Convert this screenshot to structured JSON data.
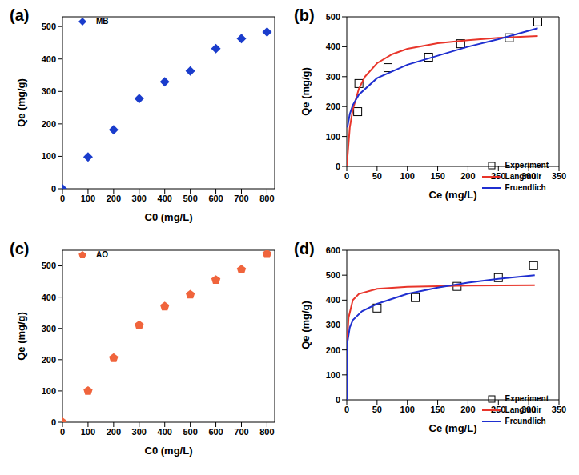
{
  "chart_data": [
    {
      "type": "scatter",
      "title": "(a)",
      "x_label": "C0 (mg/L)",
      "y_label": "Qe (mg/g)",
      "x": [
        0,
        100,
        200,
        300,
        400,
        500,
        600,
        700,
        800
      ],
      "series": [
        {
          "name": "MB",
          "type": "scatter",
          "color": "#1a3ccc",
          "marker": "diamond",
          "values": [
            0,
            98,
            182,
            278,
            330,
            363,
            432,
            463,
            483
          ]
        }
      ],
      "xlim": [
        0,
        830
      ],
      "xticks": [
        0,
        100,
        200,
        300,
        400,
        500,
        600,
        700,
        800
      ],
      "ylim": [
        0,
        530
      ],
      "yticks": [
        0,
        100,
        200,
        300,
        400,
        500
      ],
      "legend": "top-left"
    },
    {
      "type": "scatter",
      "title": "(b)",
      "x_label": "Ce (mg/L)",
      "y_label": "Qe (mg/g)",
      "series": [
        {
          "name": "Experiment",
          "type": "scatter",
          "color": "#000000",
          "marker": "open_square",
          "x": [
            18,
            20,
            68,
            135,
            188,
            268,
            315
          ],
          "values": [
            183,
            277,
            330,
            365,
            410,
            430,
            483
          ]
        },
        {
          "name": "Langmuir",
          "type": "line",
          "color": "#e8352a",
          "line_style": "solid",
          "x": [
            0,
            5,
            10,
            20,
            30,
            50,
            75,
            100,
            150,
            200,
            250,
            315
          ],
          "values": [
            0,
            130,
            190,
            260,
            300,
            345,
            375,
            393,
            412,
            422,
            430,
            436
          ]
        },
        {
          "name": "Fruendlich",
          "type": "line",
          "color": "#1f2fd0",
          "line_style": "solid",
          "x": [
            1,
            5,
            10,
            20,
            50,
            100,
            150,
            200,
            250,
            315
          ],
          "values": [
            130,
            175,
            205,
            240,
            295,
            340,
            370,
            400,
            425,
            462
          ]
        }
      ],
      "xlim": [
        0,
        350
      ],
      "xticks": [
        0,
        50,
        100,
        150,
        200,
        250,
        300,
        350
      ],
      "ylim": [
        0,
        500
      ],
      "yticks": [
        0,
        100,
        200,
        300,
        400,
        500
      ],
      "legend": "bottom-right"
    },
    {
      "type": "scatter",
      "title": "(c)",
      "x_label": "C0 (mg/L)",
      "y_label": "Qe (mg/g)",
      "x": [
        0,
        100,
        200,
        300,
        400,
        500,
        600,
        700,
        800
      ],
      "series": [
        {
          "name": "AO",
          "type": "scatter",
          "color": "#f0643c",
          "marker": "pentagon",
          "values": [
            0,
            100,
            205,
            310,
            370,
            408,
            455,
            488,
            538
          ]
        }
      ],
      "xlim": [
        0,
        830
      ],
      "xticks": [
        0,
        100,
        200,
        300,
        400,
        500,
        600,
        700,
        800
      ],
      "ylim": [
        0,
        550
      ],
      "yticks": [
        0,
        100,
        200,
        300,
        400,
        500
      ],
      "legend": "top-left"
    },
    {
      "type": "scatter",
      "title": "(d)",
      "x_label": "Ce (mg/L)",
      "y_label": "Qe (mg/g)",
      "series": [
        {
          "name": "Experiment",
          "type": "scatter",
          "color": "#000000",
          "marker": "open_square",
          "x": [
            50,
            113,
            182,
            250,
            308
          ],
          "values": [
            368,
            410,
            455,
            490,
            538
          ]
        },
        {
          "name": "Langmuir",
          "type": "line",
          "color": "#e8352a",
          "line_style": "solid",
          "x": [
            0,
            1,
            3,
            10,
            20,
            50,
            100,
            200,
            310
          ],
          "values": [
            0,
            250,
            330,
            400,
            425,
            445,
            453,
            458,
            460
          ]
        },
        {
          "name": "Freundlich",
          "type": "line",
          "color": "#1f2fd0",
          "line_style": "solid",
          "x": [
            0.5,
            1,
            5,
            10,
            25,
            50,
            100,
            150,
            200,
            250,
            310
          ],
          "values": [
            0,
            230,
            290,
            320,
            355,
            385,
            425,
            450,
            470,
            485,
            500
          ]
        }
      ],
      "xlim": [
        0,
        350
      ],
      "xticks": [
        0,
        50,
        100,
        150,
        200,
        250,
        300,
        350
      ],
      "ylim": [
        0,
        600
      ],
      "yticks": [
        0,
        100,
        200,
        300,
        400,
        500,
        600
      ],
      "legend": "bottom-right"
    }
  ]
}
